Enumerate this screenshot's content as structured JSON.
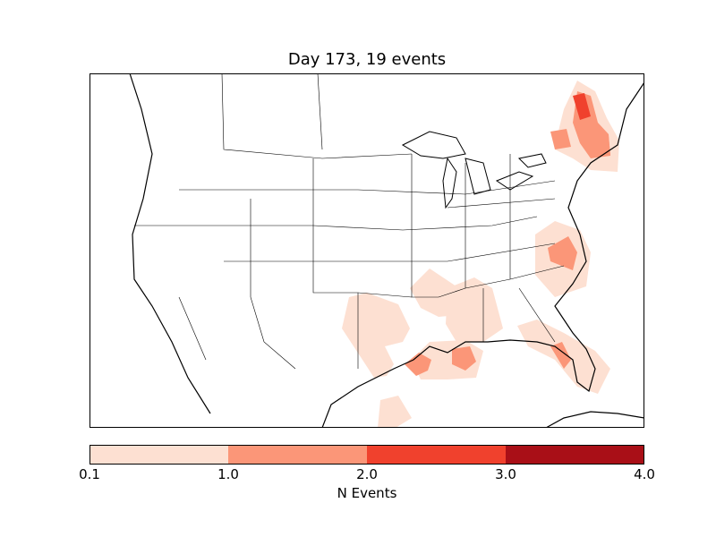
{
  "title": "Day 173, 19 events",
  "colorbar": {
    "label": "N Events",
    "ticks": [
      "0.1",
      "1.0",
      "2.0",
      "3.0",
      "4.0"
    ],
    "colors": [
      "#fde0d2",
      "#fb9678",
      "#f0412d",
      "#a90f17"
    ]
  },
  "map": {
    "region": "North America (CONUS)",
    "event_areas": [
      {
        "name": "new-england",
        "level": 2
      },
      {
        "name": "lake-erie-region",
        "level": 1
      },
      {
        "name": "virginia-north-carolina",
        "level": 1
      },
      {
        "name": "south-central",
        "level": 0
      },
      {
        "name": "mississippi-alabama",
        "level": 0
      },
      {
        "name": "gulf-coast-texas-louisiana",
        "level": 1
      },
      {
        "name": "florida",
        "level": 1
      },
      {
        "name": "south-texas",
        "level": 0
      }
    ]
  }
}
